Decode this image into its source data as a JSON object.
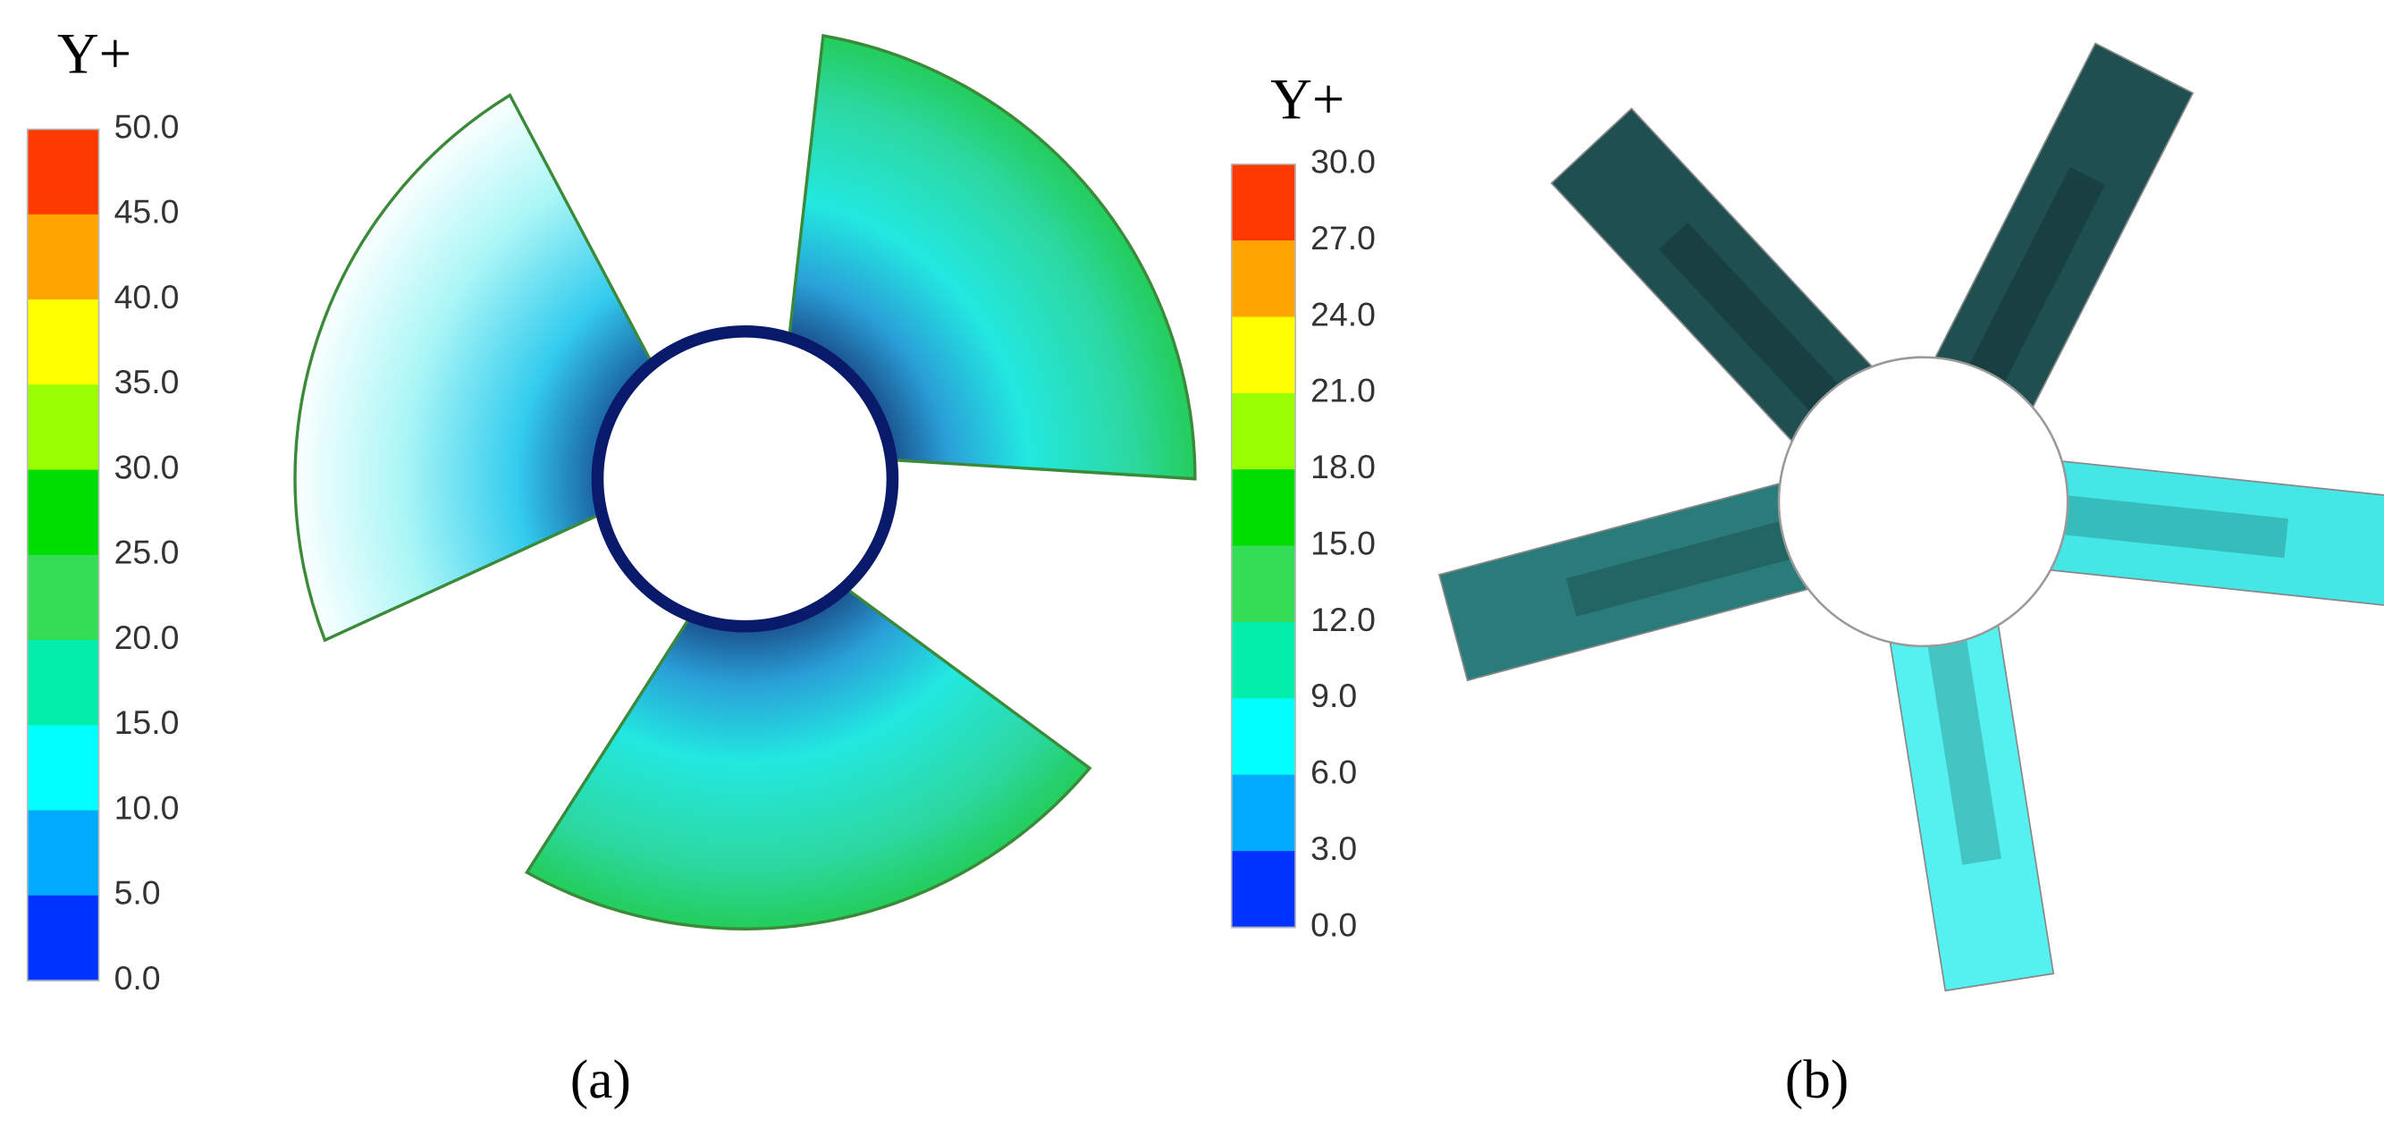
{
  "panels": [
    {
      "label": "(a)",
      "legend_title": "Y+",
      "ticks": [
        "50.0",
        "45.0",
        "40.0",
        "35.0",
        "30.0",
        "25.0",
        "20.0",
        "15.0",
        "10.0",
        "5.0",
        "0.0"
      ],
      "colors": [
        "#ff3a00",
        "#ffa500",
        "#ffff00",
        "#99ff00",
        "#00dd00",
        "#33dd55",
        "#00eeaa",
        "#00ffff",
        "#00aaff",
        "#0033ff"
      ]
    },
    {
      "label": "(b)",
      "legend_title": "Y+",
      "ticks": [
        "30.0",
        "27.0",
        "24.0",
        "21.0",
        "18.0",
        "15.0",
        "12.0",
        "9.0",
        "6.0",
        "3.0",
        "0.0"
      ],
      "colors": [
        "#ff3a00",
        "#ffa500",
        "#ffff00",
        "#99ff00",
        "#00dd00",
        "#33dd55",
        "#00eeaa",
        "#00ffff",
        "#00aaff",
        "#0033ff"
      ]
    }
  ]
}
